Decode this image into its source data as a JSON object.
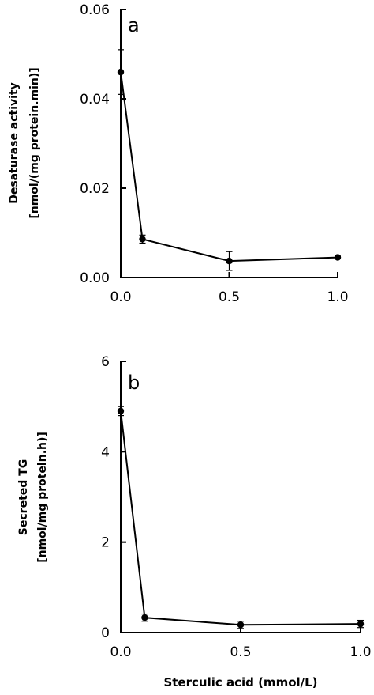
{
  "chart_data": [
    {
      "type": "line",
      "panel_label": "a",
      "xlabel": "",
      "ylabel_line1": "Desaturase activity",
      "ylabel_line2": "[nmol/(mg protein.min)]",
      "xlim": [
        0,
        1.0
      ],
      "ylim": [
        0,
        0.06
      ],
      "xticks": [
        0.0,
        0.5,
        1.0
      ],
      "xtick_labels": [
        "0.0",
        "0.5",
        "1.0"
      ],
      "yticks": [
        0.0,
        0.02,
        0.04,
        0.06
      ],
      "ytick_labels": [
        "0.00",
        "0.02",
        "0.04",
        "0.06"
      ],
      "series": [
        {
          "x": [
            0.0,
            0.1,
            0.5,
            1.0
          ],
          "y": [
            0.046,
            0.0086,
            0.0037,
            0.0045
          ],
          "error": [
            0.005,
            0.0009,
            0.0021,
            0.0003
          ]
        }
      ]
    },
    {
      "type": "line",
      "panel_label": "b",
      "xlabel": "Sterculic acid (mmol/L)",
      "ylabel_line1": "Secreted TG",
      "ylabel_line2": "[nmol/mg protein.h)]",
      "xlim": [
        0,
        1.0
      ],
      "ylim": [
        0,
        6
      ],
      "xticks": [
        0.0,
        0.5,
        1.0
      ],
      "xtick_labels": [
        "0.0",
        "0.5",
        "1.0"
      ],
      "yticks": [
        0,
        2,
        4,
        6
      ],
      "ytick_labels": [
        "0",
        "2",
        "4",
        "6"
      ],
      "series": [
        {
          "x": [
            0.0,
            0.1,
            0.5,
            1.0
          ],
          "y": [
            4.9,
            0.33,
            0.17,
            0.19
          ],
          "error": [
            0.1,
            0.08,
            0.08,
            0.08
          ]
        }
      ]
    }
  ]
}
